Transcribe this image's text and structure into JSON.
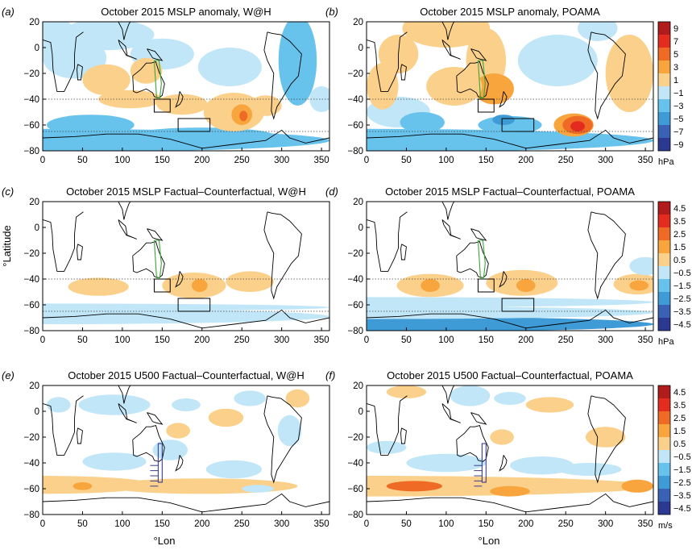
{
  "panel_letters": [
    "(a)",
    "(b)",
    "(c)",
    "(d)",
    "(e)",
    "(f)"
  ],
  "titles": [
    "October 2015 MSLP anomaly, W@H",
    "October 2015 MSLP anomaly, POAMA",
    "October 2015 MSLP Factual–Counterfactual, W@H",
    "October 2015 MSLP Factual–Counterfactual, POAMA",
    "October 2015 U500 Factual–Counterfactual, W@H",
    "October 2015 U500 Factual–Counterfactual, POAMA"
  ],
  "axes": {
    "xlabel": "°Lon",
    "ylabel": "°Latitude",
    "xticks": [
      0,
      50,
      100,
      150,
      200,
      250,
      300,
      350
    ],
    "yticks": [
      20,
      0,
      -20,
      -40,
      -60,
      -80
    ],
    "xlim": [
      0,
      360
    ],
    "ylim": [
      -80,
      20
    ]
  },
  "colorbars": [
    {
      "unit": "hPa",
      "labels": [
        "9",
        "7",
        "5",
        "3",
        "1",
        "−1",
        "−3",
        "−5",
        "−7",
        "−9"
      ]
    },
    {
      "unit": "hPa",
      "labels": [
        "4.5",
        "3.5",
        "2.5",
        "1.5",
        "0.5",
        "−0.5",
        "−1.5",
        "−2.5",
        "−3.5",
        "−4.5"
      ]
    },
    {
      "unit": "m/s",
      "labels": [
        "4.5",
        "3.5",
        "2.5",
        "1.5",
        "0.5",
        "−0.5",
        "−1.5",
        "−2.5",
        "−3.5",
        "−4.5"
      ]
    }
  ],
  "palette": [
    "#2b3990",
    "#3a62b4",
    "#3f9bd6",
    "#67c2ec",
    "#c0e6f7",
    "#ffffff",
    "#fbd08a",
    "#f7a53c",
    "#ef6a24",
    "#e32b1f",
    "#b01b1c"
  ],
  "chart_data": [
    {
      "type": "heatmap",
      "panel": "a",
      "field": "MSLP anomaly",
      "model": "W@H",
      "units": "hPa",
      "x_range": [
        0,
        360
      ],
      "y_range": [
        -80,
        20
      ],
      "features": [
        {
          "lon": 250,
          "lat": -52,
          "value": 6.5
        },
        {
          "lon": 280,
          "lat": -45,
          "value": 2.5
        },
        {
          "lon": 175,
          "lat": -45,
          "value": 2.0
        },
        {
          "lon": 120,
          "lat": -40,
          "value": 1.5
        },
        {
          "lon": 70,
          "lat": -68,
          "value": -5.5
        },
        {
          "lon": 200,
          "lat": -68,
          "value": -5.0
        },
        {
          "lon": 320,
          "lat": -10,
          "value": -3.5
        }
      ]
    },
    {
      "type": "heatmap",
      "panel": "b",
      "field": "MSLP anomaly",
      "model": "POAMA",
      "units": "hPa",
      "x_range": [
        0,
        360
      ],
      "y_range": [
        -80,
        20
      ],
      "features": [
        {
          "lon": 265,
          "lat": -60,
          "value": 8.0
        },
        {
          "lon": 160,
          "lat": -30,
          "value": 3.0
        },
        {
          "lon": 100,
          "lat": -10,
          "value": 2.0
        },
        {
          "lon": 175,
          "lat": -57,
          "value": -6.0
        },
        {
          "lon": 40,
          "lat": -50,
          "value": -3.0
        },
        {
          "lon": 240,
          "lat": -10,
          "value": -2.0
        }
      ]
    },
    {
      "type": "heatmap",
      "panel": "c",
      "field": "MSLP Factual–Counterfactual",
      "model": "W@H",
      "units": "hPa",
      "x_range": [
        0,
        360
      ],
      "y_range": [
        -80,
        20
      ],
      "features": [
        {
          "lon": 190,
          "lat": -45,
          "value": 2.0
        },
        {
          "lon": 70,
          "lat": -45,
          "value": 1.0
        },
        {
          "lon": 260,
          "lat": -42,
          "value": 1.0
        },
        {
          "lon": 180,
          "lat": -70,
          "value": -1.0
        }
      ]
    },
    {
      "type": "heatmap",
      "panel": "d",
      "field": "MSLP Factual–Counterfactual",
      "model": "POAMA",
      "units": "hPa",
      "x_range": [
        0,
        360
      ],
      "y_range": [
        -80,
        20
      ],
      "features": [
        {
          "lon": 80,
          "lat": -45,
          "value": 2.0
        },
        {
          "lon": 195,
          "lat": -45,
          "value": 2.0
        },
        {
          "lon": 340,
          "lat": -45,
          "value": 2.0
        },
        {
          "lon": 180,
          "lat": -75,
          "value": -3.0
        }
      ]
    },
    {
      "type": "heatmap",
      "panel": "e",
      "field": "U500 Factual–Counterfactual",
      "model": "W@H",
      "units": "m/s",
      "x_range": [
        0,
        360
      ],
      "y_range": [
        -80,
        20
      ],
      "features": [
        {
          "lon": 50,
          "lat": -58,
          "value": 2.0
        },
        {
          "lon": 180,
          "lat": -55,
          "value": 1.0
        },
        {
          "lon": 90,
          "lat": -40,
          "value": -1.0
        },
        {
          "lon": 80,
          "lat": 5,
          "value": -1.0
        }
      ]
    },
    {
      "type": "heatmap",
      "panel": "f",
      "field": "U500 Factual–Counterfactual",
      "model": "POAMA",
      "units": "m/s",
      "x_range": [
        0,
        360
      ],
      "y_range": [
        -80,
        20
      ],
      "features": [
        {
          "lon": 60,
          "lat": -58,
          "value": 2.5
        },
        {
          "lon": 180,
          "lat": -62,
          "value": 2.0
        },
        {
          "lon": 340,
          "lat": -58,
          "value": 2.0
        },
        {
          "lon": 100,
          "lat": -40,
          "value": -1.0
        }
      ]
    }
  ]
}
